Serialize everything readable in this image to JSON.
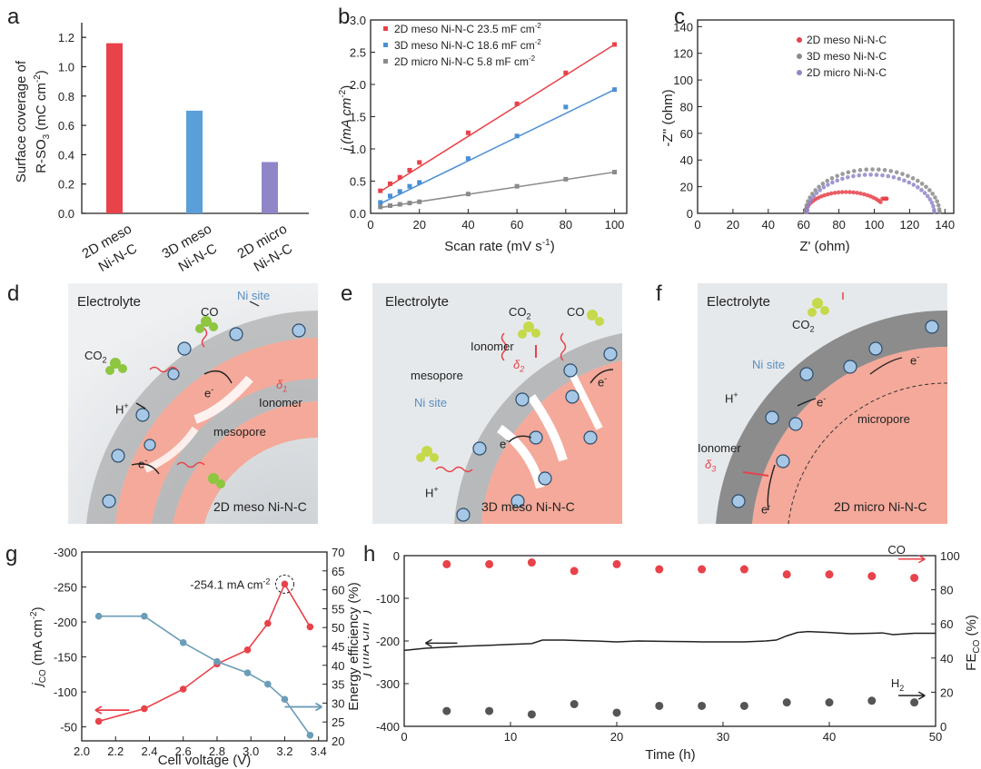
{
  "colors": {
    "red": "#e8424a",
    "blue": "#4a8fd6",
    "purple": "#8f86c8",
    "gray": "#8a8a8a",
    "teal": "#6b9db8",
    "black": "#222222",
    "pink": "#f4a99a",
    "ionomer": "#9a9a9a",
    "scheme_bg": "#dfe3e6"
  },
  "panels": {
    "a": {
      "letter": "a",
      "ylabel_line1": "Surface coverage of",
      "ylabel_line2": "R-SO",
      "ylabel_sub": "3",
      "ylabel_unit": " (mC cm",
      "ylabel_sup": "-2",
      "ylabel_end": ")",
      "yticks": [
        "0.0",
        "0.2",
        "0.4",
        "0.6",
        "0.8",
        "1.0",
        "1.2"
      ],
      "cat_line1": [
        "2D meso",
        "3D meso",
        "2D micro"
      ],
      "cat_line2": [
        "Ni-N-C",
        "Ni-N-C",
        "Ni-N-C"
      ]
    },
    "b": {
      "letter": "b",
      "ylabel": "j (mA cm",
      "ylabel_sup": "-2",
      "ylabel_end": ")",
      "xlabel": "Scan rate (mV s",
      "xlabel_sup": "-1",
      "xlabel_end": ")",
      "xticks": [
        "0",
        "20",
        "40",
        "60",
        "80",
        "100"
      ],
      "yticks": [
        "0.0",
        "0.5",
        "1.0",
        "1.5",
        "2.0",
        "2.5",
        "3.0"
      ],
      "legend": [
        {
          "text": "2D meso Ni-N-C 23.5 mF cm",
          "sup": "-2"
        },
        {
          "text": "3D meso Ni-N-C 18.6 mF cm",
          "sup": "-2"
        },
        {
          "text": "2D micro Ni-N-C 5.8 mF cm",
          "sup": "-2"
        }
      ]
    },
    "c": {
      "letter": "c",
      "ylabel": "-Z'' (ohm)",
      "xlabel": "Z' (ohm)",
      "xticks": [
        "0",
        "20",
        "40",
        "60",
        "80",
        "100",
        "120",
        "140"
      ],
      "yticks": [
        "0",
        "20",
        "40",
        "60",
        "80",
        "100",
        "120",
        "140"
      ],
      "legend": [
        "2D meso Ni-N-C",
        "3D meso Ni-N-C",
        "2D micro Ni-N-C"
      ]
    },
    "d": {
      "letter": "d",
      "electrolyte": "Electrolyte",
      "ni_site": "Ni site",
      "co": "CO",
      "co2": "CO",
      "co2_sub": "2",
      "hplus": "H",
      "hplus_sup": "+",
      "eminus": "e",
      "eminus_sup": "-",
      "ionomer": "Ionomer",
      "delta": "δ",
      "delta_sub": "1",
      "mesopore": "mesopore",
      "name": "2D meso Ni-N-C"
    },
    "e": {
      "letter": "e",
      "electrolyte": "Electrolyte",
      "co2": "CO",
      "co2_sub": "2",
      "co": "CO",
      "ionomer": "Ionomer",
      "delta": "δ",
      "delta_sub": "2",
      "mesopore": "mesopore",
      "ni_site": "Ni site",
      "eminus": "e",
      "eminus_sup": "-",
      "hplus": "H",
      "hplus_sup": "+",
      "name": "3D meso Ni-N-C"
    },
    "f": {
      "letter": "f",
      "electrolyte": "Electrolyte",
      "co2": "CO",
      "co2_sub": "2",
      "ni_site": "Ni site",
      "hplus": "H",
      "hplus_sup": "+",
      "eminus": "e",
      "eminus_sup": "-",
      "micropore": "micropore",
      "ionomer": "Ionomer",
      "delta": "δ",
      "delta_sub": "3",
      "name": "2D micro Ni-N-C"
    },
    "g": {
      "letter": "g",
      "ylabel_left": "j",
      "ylabel_left_sub": "CO",
      "ylabel_left_unit": " (mA cm",
      "ylabel_left_sup": "-2",
      "ylabel_left_end": ")",
      "ylabel_right": "Energy efficiency (%)",
      "xlabel": "Cell voltage (V)",
      "xticks": [
        "2.0",
        "2.2",
        "2.4",
        "2.6",
        "2.8",
        "3.0",
        "3.2",
        "3.4"
      ],
      "yticks_left": [
        "-50",
        "-100",
        "-150",
        "-200",
        "-250",
        "-300"
      ],
      "yticks_right": [
        "20",
        "25",
        "30",
        "35",
        "40",
        "45",
        "50",
        "55",
        "60",
        "65",
        "70"
      ],
      "annotation": "-254.1 mA cm",
      "annotation_sup": "-2"
    },
    "h": {
      "letter": "h",
      "ylabel_left": "j (mA cm",
      "ylabel_left_sup": "-2",
      "ylabel_left_end": ")",
      "ylabel_right": "FE",
      "ylabel_right_sub": "CO",
      "ylabel_right_end": " (%)",
      "xlabel": "Time (h)",
      "xticks": [
        "0",
        "10",
        "20",
        "30",
        "40",
        "50"
      ],
      "yticks_left": [
        "0",
        "-100",
        "-200",
        "-300",
        "-400"
      ],
      "yticks_right": [
        "0",
        "20",
        "40",
        "60",
        "80",
        "100"
      ],
      "label_co": "CO",
      "label_h2": "H",
      "label_h2_sub": "2"
    }
  },
  "chart_data": [
    {
      "id": "a",
      "type": "bar",
      "categories": [
        "2D meso Ni-N-C",
        "3D meso Ni-N-C",
        "2D micro Ni-N-C"
      ],
      "values": [
        1.16,
        0.7,
        0.35
      ],
      "colors": [
        "#e8424a",
        "#5a9fd8",
        "#8f86c8"
      ],
      "ylabel": "Surface coverage of R-SO3 (mC cm-2)",
      "ylim": [
        0,
        1.3
      ]
    },
    {
      "id": "b",
      "type": "scatter",
      "xlabel": "Scan rate (mV s-1)",
      "ylabel": "j (mA cm-2)",
      "xlim": [
        0,
        105
      ],
      "ylim": [
        0,
        3.0
      ],
      "series": [
        {
          "name": "2D meso Ni-N-C 23.5 mF cm-2",
          "color": "#e8424a",
          "x": [
            4,
            8,
            12,
            16,
            20,
            40,
            60,
            80,
            100
          ],
          "y": [
            0.35,
            0.46,
            0.56,
            0.67,
            0.79,
            1.25,
            1.7,
            2.18,
            2.62
          ],
          "fit": [
            [
              4,
              0.34
            ],
            [
              100,
              2.62
            ]
          ]
        },
        {
          "name": "3D meso Ni-N-C 18.6 mF cm-2",
          "color": "#4a8fd6",
          "x": [
            4,
            8,
            12,
            16,
            20,
            40,
            60,
            80,
            100
          ],
          "y": [
            0.17,
            0.27,
            0.34,
            0.42,
            0.48,
            0.85,
            1.2,
            1.65,
            1.92
          ],
          "fit": [
            [
              4,
              0.15
            ],
            [
              100,
              1.92
            ]
          ]
        },
        {
          "name": "2D micro Ni-N-C 5.8 mF cm-2",
          "color": "#8a8a8a",
          "x": [
            4,
            8,
            12,
            16,
            20,
            40,
            60,
            80,
            100
          ],
          "y": [
            0.1,
            0.12,
            0.14,
            0.16,
            0.18,
            0.3,
            0.42,
            0.53,
            0.64
          ],
          "fit": [
            [
              4,
              0.09
            ],
            [
              100,
              0.64
            ]
          ]
        }
      ]
    },
    {
      "id": "c",
      "type": "scatter",
      "xlabel": "Z' (ohm)",
      "ylabel": "-Z'' (ohm)",
      "xlim": [
        0,
        145
      ],
      "ylim": [
        0,
        145
      ],
      "series": [
        {
          "name": "2D meso Ni-N-C",
          "color": "#e8424a",
          "center": 84,
          "radius": 23,
          "zmax": 16,
          "xend": 107,
          "yend": 11
        },
        {
          "name": "3D meso Ni-N-C",
          "color": "#8a8a8a",
          "center": 99,
          "radius": 38,
          "zmax": 33,
          "xend": 137,
          "yend": 1
        },
        {
          "name": "2D micro Ni-N-C",
          "color": "#8f86c8",
          "center": 98,
          "radius": 36,
          "zmax": 29,
          "xend": 134,
          "yend": 1
        }
      ]
    },
    {
      "id": "g",
      "type": "line",
      "xlabel": "Cell voltage (V)",
      "xlim": [
        2.0,
        3.45
      ],
      "left": {
        "label": "jCO (mA cm-2)",
        "ylim": [
          -30,
          -300
        ],
        "color": "#e8424a",
        "x": [
          2.1,
          2.37,
          2.6,
          2.8,
          2.98,
          3.1,
          3.2,
          3.35
        ],
        "y": [
          -58,
          -76,
          -104,
          -140,
          -160,
          -198,
          -254.1,
          -193
        ]
      },
      "right": {
        "label": "Energy efficiency (%)",
        "ylim": [
          20,
          70
        ],
        "color": "#6b9db8",
        "x": [
          2.1,
          2.37,
          2.6,
          2.8,
          2.98,
          3.1,
          3.2,
          3.35
        ],
        "y": [
          53,
          53,
          46,
          41,
          38,
          35,
          31,
          21.5
        ]
      },
      "annotation": {
        "text": "-254.1 mA cm-2",
        "x": 3.2,
        "y": -254.1
      }
    },
    {
      "id": "h",
      "type": "line",
      "xlabel": "Time (h)",
      "xlim": [
        0,
        50
      ],
      "left": {
        "label": "j (mA cm-2)",
        "ylim": [
          0,
          -400
        ],
        "color": "#222222",
        "x": [
          0,
          2,
          5,
          8,
          10,
          12,
          13,
          15,
          18,
          20,
          22,
          25,
          28,
          30,
          32,
          34,
          35,
          36,
          37,
          38,
          40,
          42,
          44,
          45,
          46,
          48,
          50
        ],
        "y": [
          -222,
          -217,
          -213,
          -210,
          -208,
          -206,
          -198,
          -198,
          -200,
          -202,
          -200,
          -201,
          -202,
          -202,
          -202,
          -200,
          -198,
          -188,
          -180,
          -178,
          -180,
          -183,
          -182,
          -181,
          -185,
          -182,
          -182
        ]
      },
      "right": {
        "label": "FE CO (%)",
        "ylim": [
          0,
          100
        ],
        "co": {
          "color": "#e8424a",
          "x": [
            4,
            8,
            12,
            16,
            20,
            24,
            28,
            32,
            36,
            40,
            44,
            48
          ],
          "y": [
            95,
            95,
            96,
            91,
            95,
            92,
            92,
            92,
            89,
            89,
            88,
            87
          ]
        },
        "h2": {
          "color": "#555555",
          "x": [
            4,
            8,
            12,
            16,
            20,
            24,
            28,
            32,
            36,
            40,
            44,
            48
          ],
          "y": [
            9,
            9,
            7,
            13,
            8,
            12,
            12,
            12,
            14,
            14,
            15,
            14
          ]
        }
      }
    }
  ]
}
